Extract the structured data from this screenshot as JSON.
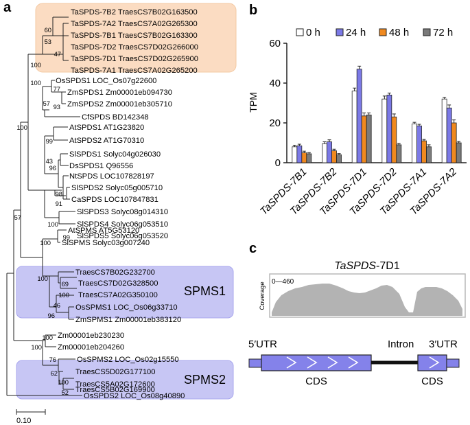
{
  "panel_a": {
    "letter": "a",
    "boxes": {
      "top_group_color": "#fbdcc2",
      "spms_color": "#c7c6f4",
      "spms1_label": "SPMS1",
      "spms2_label": "SPMS2"
    },
    "leaves": [
      "TaSPDS-7B2 TraesCS7B02G163500",
      "TaSPDS-7A2 TraesCS7A02G265300",
      "TaSPDS-7B1 TraesCS7B02G163300",
      "TaSPDS-7D2 TraesCS7D02G266000",
      "TaSPDS-7D1 TraesCS7D02G265900",
      "TaSPDS-7A1 TraesCS7A02G265200",
      "OsSPDS1 LOC_Os07g22600",
      "ZmSPDS1 Zm00001eb094730",
      "ZmSPDS2 Zm00001eb305710",
      "CfSPDS BD142348",
      "AtSPDS1 AT1G23820",
      "AtSPDS2 AT1G70310",
      "SlSPDS1 Solyc04g026030",
      "DsSPDS1 Q96556",
      "NtSPDS LOC107828197",
      "SlSPDS2 Solyc05g005710",
      "CaSPDS LOC107847831",
      "SlSPDS3 Solyc08g014310",
      "SlSPDS4 Solyc06g053510",
      "SlSPDS5 Solyc06g053520",
      "AtSPMS AT5G53120",
      "SlSPMS Solyc03g007240",
      "TraesCS7B02G232700",
      "TraesCS7D02G328500",
      "TraesCS7A02G350100",
      "OsSPMS1 LOC_Os06g33710",
      "ZmSPMS1 Zm00001eb383120",
      "Zm00001eb230230",
      "Zm00001eb204260",
      "OsSPMS2 LOC_Os02g15550",
      "TraesCS5D02G177100",
      "TraesCS5A02G172600",
      "TraesCS5B02G169900",
      "OsSPDS2 LOC_Os08g40890"
    ],
    "bootstrap": [
      "60",
      "53",
      "47",
      "100",
      "100",
      "77",
      "93",
      "57",
      "99",
      "100",
      "43",
      "96",
      "98",
      "91",
      "100",
      "99",
      "57",
      "100",
      "100",
      "69",
      "100",
      "46",
      "96",
      "100",
      "100",
      "76",
      "62",
      "100",
      "52"
    ],
    "scale_label": "0.10"
  },
  "panel_b": {
    "letter": "b",
    "chart_data": {
      "type": "bar",
      "ylabel": "TPM",
      "ylim": [
        0,
        60
      ],
      "yticks": [
        "0",
        "20",
        "40",
        "60"
      ],
      "categories": [
        "TaSPDS-7B1",
        "TaSPDS-7B2",
        "TaSPDS-7D1",
        "TaSPDS-7D2",
        "TaSPDS-7A1",
        "TaSPDS-7A2"
      ],
      "series": [
        {
          "name": "0 h",
          "color": "#ffffff",
          "values": [
            8,
            9.5,
            36,
            32,
            19.5,
            32
          ],
          "errors": [
            0.8,
            1,
            1.5,
            1.5,
            0.8,
            0.8
          ]
        },
        {
          "name": "24 h",
          "color": "#7b79e6",
          "values": [
            8.5,
            10.5,
            47,
            34,
            18.5,
            27.5
          ],
          "errors": [
            0.8,
            1,
            1.5,
            1,
            0.8,
            1.5
          ]
        },
        {
          "name": "48 h",
          "color": "#f0891f",
          "values": [
            5,
            6,
            23.5,
            23,
            11,
            20
          ],
          "errors": [
            0.8,
            0.8,
            1.5,
            1.5,
            0.7,
            1.5
          ]
        },
        {
          "name": "72 h",
          "color": "#7a7a7a",
          "values": [
            4.5,
            4,
            24,
            9,
            8,
            10
          ],
          "errors": [
            0.6,
            0.6,
            1,
            0.8,
            1,
            0.7
          ]
        }
      ]
    }
  },
  "panel_c": {
    "letter": "c",
    "gene_title_italic": "TaSPDS",
    "gene_title_rest": "-7D1",
    "coverage_range": "0—460",
    "coverage_label": "Coverage",
    "utr5": "5′UTR",
    "utr3": "3′UTR",
    "intron": "Intron",
    "cds1": "CDS",
    "cds2": "CDS",
    "cds_color": "#8482ea"
  }
}
